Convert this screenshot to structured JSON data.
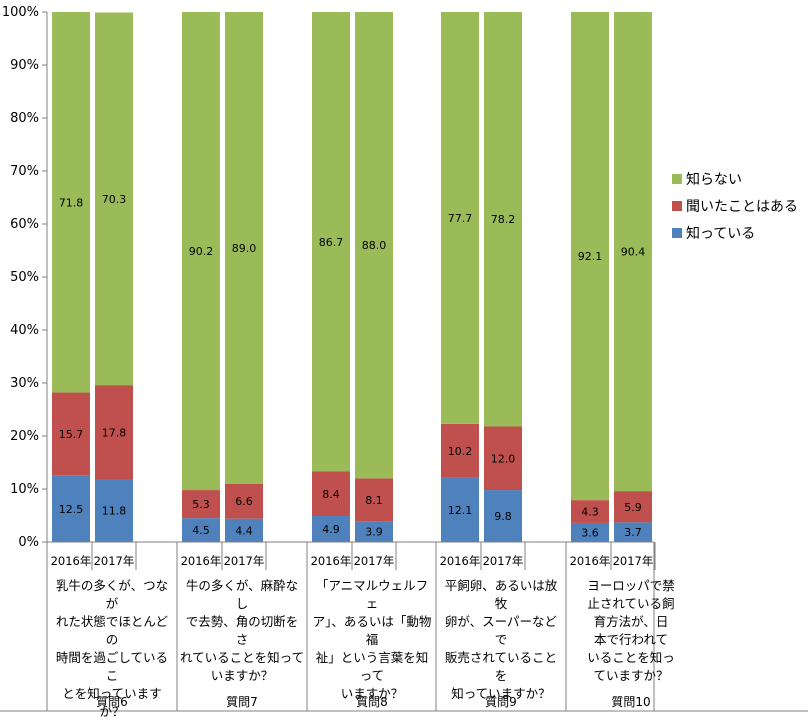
{
  "chart_data": {
    "type": "bar",
    "stacked": true,
    "ylim": [
      0,
      100
    ],
    "yticks": [
      "0%",
      "10%",
      "20%",
      "30%",
      "40%",
      "50%",
      "60%",
      "70%",
      "80%",
      "90%",
      "100%"
    ],
    "legend_position": "right",
    "series": [
      {
        "name": "知っている",
        "color": "#4f81bd"
      },
      {
        "name": "聞いたことはある",
        "color": "#c0504d"
      },
      {
        "name": "知らない",
        "color": "#9bbb59"
      }
    ],
    "groups": [
      {
        "label": "質問6",
        "question": [
          "乳牛の多くが、つなが",
          "れた状態でほとんどの",
          "時間を過ごしているこ",
          "とを知っていますか？"
        ],
        "bars": [
          {
            "year": "2016年",
            "values": [
              12.5,
              15.7,
              71.8
            ]
          },
          {
            "year": "2017年",
            "values": [
              11.8,
              17.8,
              70.3
            ]
          }
        ]
      },
      {
        "label": "質問7",
        "question": [
          "牛の多くが、麻酔なし",
          "で去勢、角の切断をさ",
          "れていることを知って",
          "いますか？"
        ],
        "bars": [
          {
            "year": "2016年",
            "values": [
              4.5,
              5.3,
              90.2
            ]
          },
          {
            "year": "2017年",
            "values": [
              4.4,
              6.6,
              89.0
            ]
          }
        ]
      },
      {
        "label": "質問8",
        "question": [
          "「アニマルウェルフェ",
          "ア」、あるいは「動物福",
          "祉」という言葉を知って",
          "いますか？"
        ],
        "bars": [
          {
            "year": "2016年",
            "values": [
              4.9,
              8.4,
              86.7
            ]
          },
          {
            "year": "2017年",
            "values": [
              3.9,
              8.1,
              88.0
            ]
          }
        ]
      },
      {
        "label": "質問9",
        "question": [
          "平飼卵、あるいは放牧",
          "卵が、スーパーなどで",
          "販売されていることを",
          "知っていますか？"
        ],
        "bars": [
          {
            "year": "2016年",
            "values": [
              12.1,
              10.2,
              77.7
            ]
          },
          {
            "year": "2017年",
            "values": [
              9.8,
              12.0,
              78.2
            ]
          }
        ]
      },
      {
        "label": "質問10",
        "question": [
          "ヨーロッパで禁",
          "止されている飼",
          "育方法が、日",
          "本で行われて",
          "いることを知っ",
          "ていますか？"
        ],
        "bars": [
          {
            "year": "2016年",
            "values": [
              3.6,
              4.3,
              92.1
            ]
          },
          {
            "year": "2017年",
            "values": [
              3.7,
              5.9,
              90.4
            ]
          }
        ]
      }
    ]
  }
}
